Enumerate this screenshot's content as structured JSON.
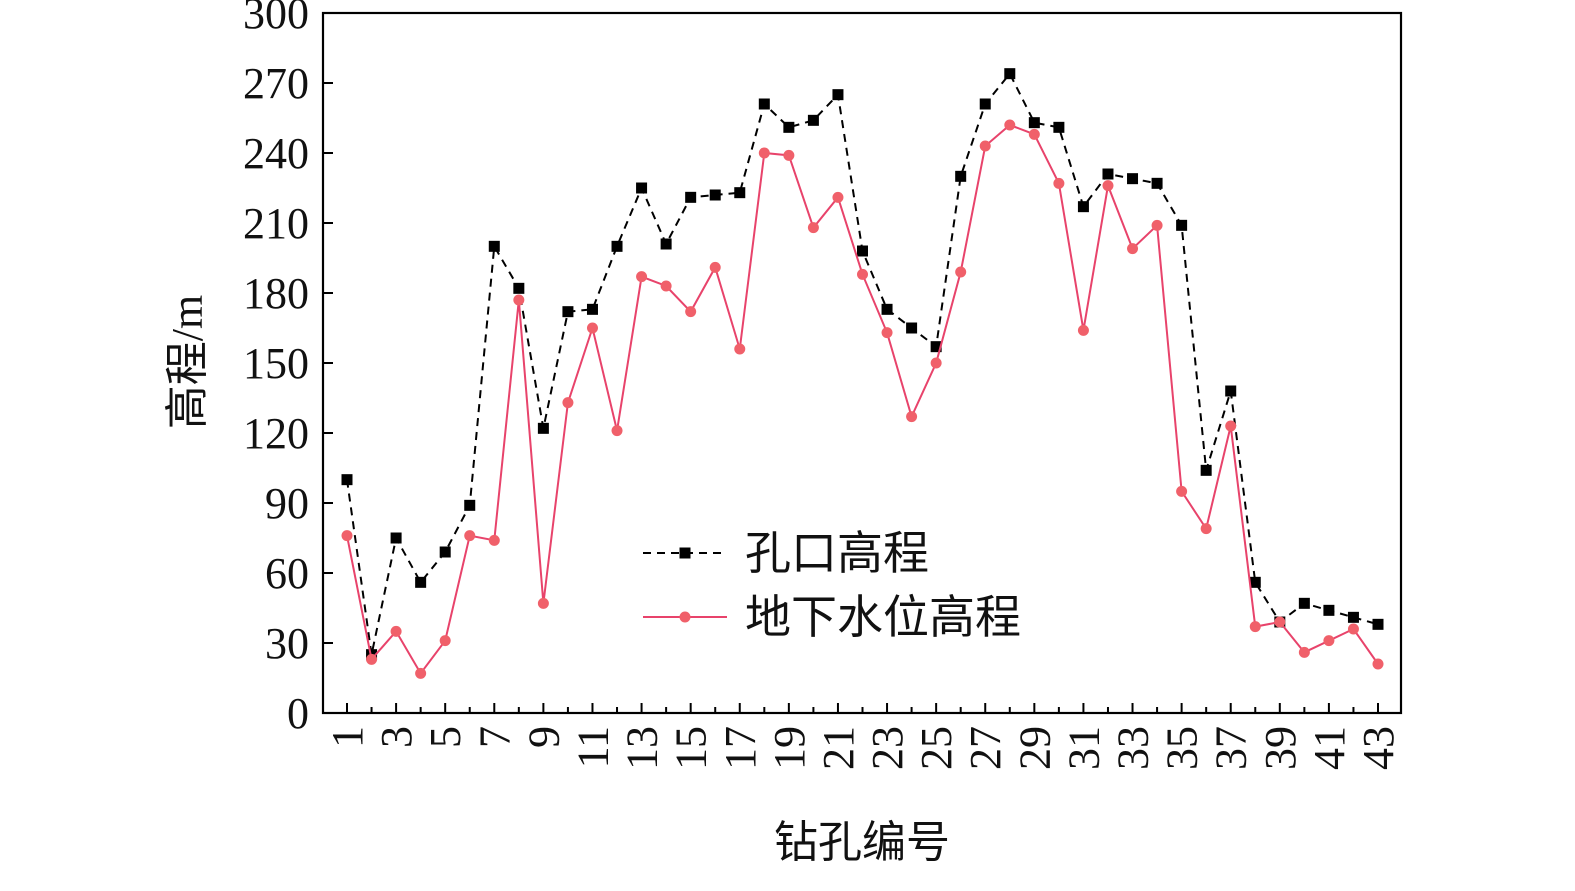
{
  "chart_data": {
    "type": "line",
    "xlabel": "钻孔编号",
    "ylabel": "高程/m",
    "ylim": [
      0,
      300
    ],
    "yticks": [
      0,
      30,
      60,
      90,
      120,
      150,
      180,
      210,
      240,
      270,
      300
    ],
    "x": [
      1,
      2,
      3,
      4,
      5,
      6,
      7,
      8,
      9,
      10,
      11,
      12,
      13,
      14,
      15,
      16,
      17,
      18,
      19,
      20,
      21,
      22,
      23,
      24,
      25,
      26,
      27,
      28,
      29,
      30,
      31,
      32,
      33,
      34,
      35,
      36,
      37,
      38,
      39,
      40,
      41,
      42,
      43
    ],
    "xticks": [
      1,
      3,
      5,
      7,
      9,
      11,
      13,
      15,
      17,
      19,
      21,
      23,
      25,
      27,
      29,
      31,
      33,
      35,
      37,
      39,
      41,
      43
    ],
    "grid": false,
    "legend_position": "center",
    "series": [
      {
        "name": "孔口高程",
        "color": "#000000",
        "line_style": "dashed",
        "marker": "square",
        "values": [
          100,
          25,
          75,
          56,
          69,
          89,
          200,
          182,
          122,
          172,
          173,
          200,
          225,
          201,
          221,
          222,
          223,
          261,
          251,
          254,
          265,
          198,
          173,
          165,
          157,
          230,
          261,
          274,
          253,
          251,
          217,
          231,
          229,
          227,
          209,
          104,
          138,
          56,
          39,
          47,
          44,
          41,
          38
        ]
      },
      {
        "name": "地下水位高程",
        "color": "#e8436b",
        "marker_color": "#f0606a",
        "line_style": "solid",
        "marker": "circle",
        "values": [
          76,
          23,
          35,
          17,
          31,
          76,
          74,
          177,
          47,
          133,
          165,
          121,
          187,
          183,
          172,
          191,
          156,
          240,
          239,
          208,
          221,
          188,
          163,
          127,
          150,
          189,
          243,
          252,
          248,
          227,
          164,
          226,
          199,
          209,
          95,
          79,
          123,
          37,
          39,
          26,
          31,
          36,
          21
        ]
      }
    ]
  }
}
